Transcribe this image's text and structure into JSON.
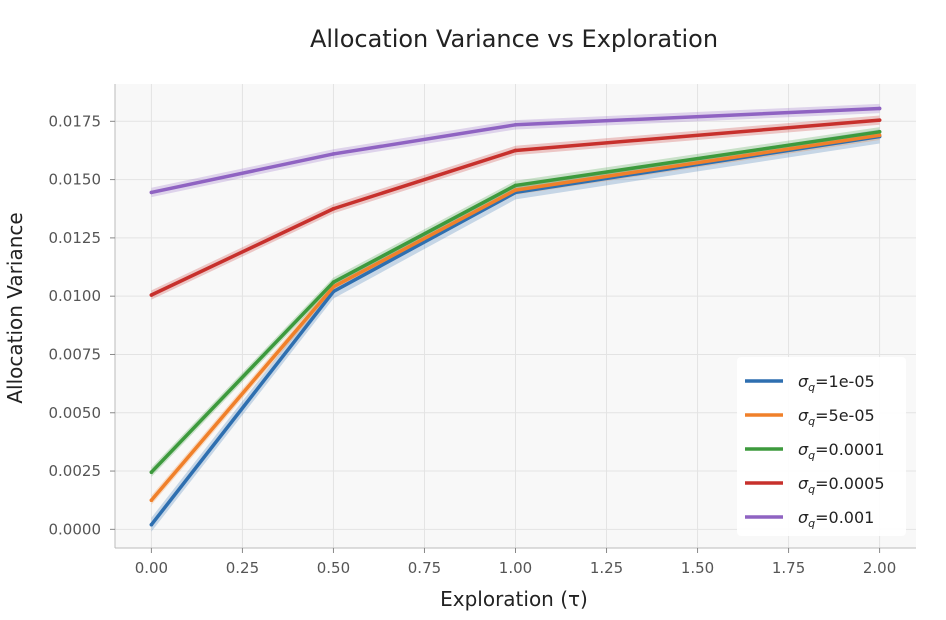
{
  "chart_data": {
    "type": "line",
    "title": "Allocation Variance vs Exploration",
    "xlabel": "Exploration (τ)",
    "ylabel": "Allocation Variance",
    "xlim": [
      -0.1,
      2.1
    ],
    "ylim": [
      -0.0008,
      0.0191
    ],
    "x_ticks": [
      "0.00",
      "0.25",
      "0.50",
      "0.75",
      "1.00",
      "1.25",
      "1.50",
      "1.75",
      "2.00"
    ],
    "y_ticks": [
      "0.0000",
      "0.0025",
      "0.0050",
      "0.0075",
      "0.0100",
      "0.0125",
      "0.0150",
      "0.0175"
    ],
    "grid": true,
    "legend_position": "bottom-right",
    "x": [
      0.0,
      0.5,
      1.0,
      2.0
    ],
    "series": [
      {
        "name": "σq=1e-05",
        "symbol": "σ",
        "subscript": "q",
        "value_text": "=1e-05",
        "color": "#2e6fb0",
        "values": [
          0.0002,
          0.0102,
          0.01445,
          0.01685
        ],
        "band": 0.0003
      },
      {
        "name": "σq=5e-05",
        "symbol": "σ",
        "subscript": "q",
        "value_text": "=5e-05",
        "color": "#f0802a",
        "values": [
          0.00125,
          0.0104,
          0.01455,
          0.0169
        ],
        "band": 0.0002
      },
      {
        "name": "σq=0.0001",
        "symbol": "σ",
        "subscript": "q",
        "value_text": "=0.0001",
        "color": "#3d9a3d",
        "values": [
          0.00245,
          0.0106,
          0.01475,
          0.01705
        ],
        "band": 0.0002
      },
      {
        "name": "σq=0.0005",
        "symbol": "σ",
        "subscript": "q",
        "value_text": "=0.0005",
        "color": "#c7302c",
        "values": [
          0.01005,
          0.01375,
          0.01625,
          0.01755
        ],
        "band": 0.0002
      },
      {
        "name": "σq=0.001",
        "symbol": "σ",
        "subscript": "q",
        "value_text": "=0.001",
        "color": "#8f63c2",
        "values": [
          0.01445,
          0.0161,
          0.01735,
          0.01805
        ],
        "band": 0.0002
      }
    ]
  }
}
